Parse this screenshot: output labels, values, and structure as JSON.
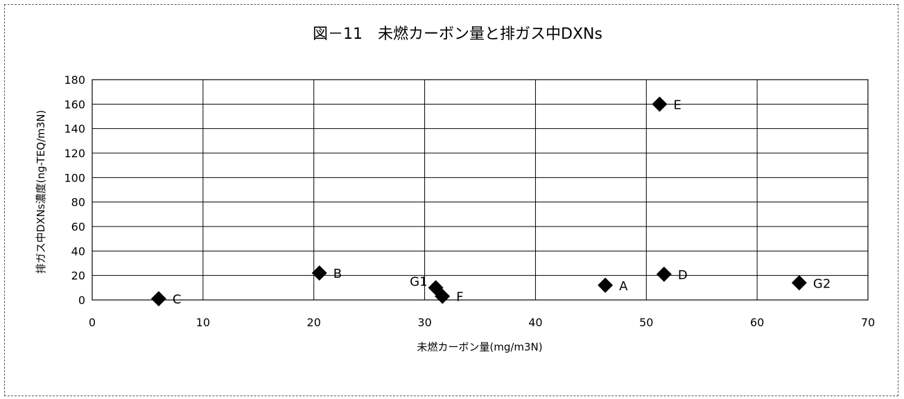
{
  "chart_data": {
    "type": "scatter",
    "title": "図－11　未燃カーボン量と排ガス中DXNs",
    "xlabel": "未燃カーボン量(mg/m3N)",
    "ylabel": "排ガス中DXNs濃度(ng-TEQ/m3N)",
    "xlim": [
      0,
      70
    ],
    "ylim": [
      0,
      180
    ],
    "xticks": [
      0,
      10,
      20,
      30,
      40,
      50,
      60,
      70
    ],
    "yticks": [
      0,
      20,
      40,
      60,
      80,
      100,
      120,
      140,
      160,
      180
    ],
    "grid": true,
    "marker": "diamond",
    "marker_color": "#000000",
    "points": [
      {
        "label": "C",
        "x": 6.0,
        "y": 1
      },
      {
        "label": "B",
        "x": 20.5,
        "y": 22
      },
      {
        "label": "G1",
        "x": 31.0,
        "y": 10
      },
      {
        "label": "F",
        "x": 31.6,
        "y": 3
      },
      {
        "label": "A",
        "x": 46.3,
        "y": 12
      },
      {
        "label": "D",
        "x": 51.6,
        "y": 21
      },
      {
        "label": "E",
        "x": 51.2,
        "y": 160
      },
      {
        "label": "G2",
        "x": 63.8,
        "y": 14
      }
    ]
  }
}
